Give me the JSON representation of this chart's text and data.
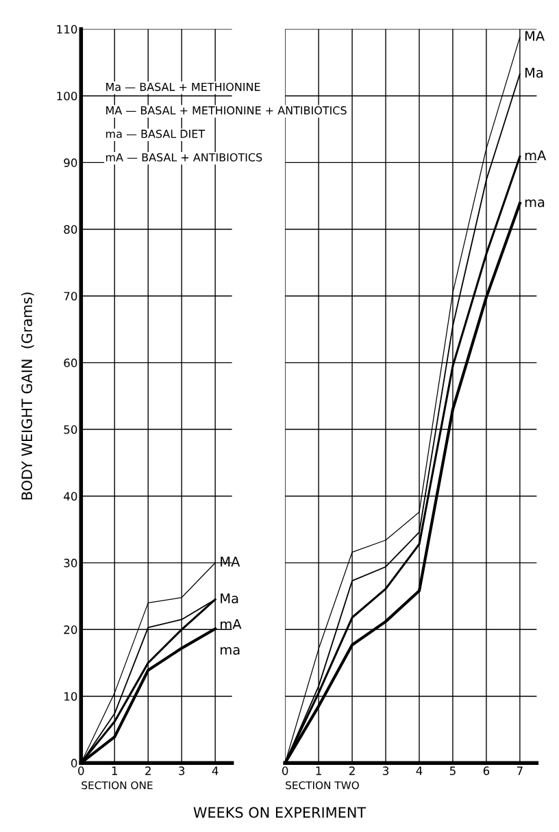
{
  "chart_data": [
    {
      "type": "line",
      "xlabel": "SECTION ONE",
      "ylabel": "BODY WEIGHT GAIN  (Grams)",
      "x": [
        0,
        1,
        2,
        3,
        4
      ],
      "xlim": [
        0,
        4.5
      ],
      "xticks": [
        0,
        1,
        2,
        3,
        4
      ],
      "ylim": [
        0,
        110
      ],
      "yticks": [
        0,
        10,
        20,
        30,
        40,
        50,
        60,
        70,
        80,
        90,
        100,
        110
      ],
      "grid": true,
      "marker": "none",
      "line_style": "solid",
      "annotations": [
        "Ma — BASAL + METHIONINE",
        "MA — BASAL + METHIONINE + ANTIBIOTICS",
        "ma — BASAL DIET",
        "mA — BASAL + ANTIBIOTICS"
      ],
      "series": [
        {
          "name": "MA",
          "color": "#000000",
          "values": [
            0,
            10.5,
            24,
            24.8,
            30
          ]
        },
        {
          "name": "Ma",
          "color": "#000000",
          "values": [
            0,
            7.4,
            20.3,
            21.5,
            24.5
          ]
        },
        {
          "name": "mA",
          "color": "#000000",
          "values": [
            0,
            6.2,
            15,
            20,
            24.5
          ]
        },
        {
          "name": "ma",
          "color": "#000000",
          "values": [
            0,
            3.9,
            13.9,
            17.2,
            20.1
          ]
        }
      ]
    },
    {
      "type": "line",
      "xlabel": "SECTION TWO",
      "x": [
        0,
        1,
        2,
        3,
        4,
        5,
        6,
        7
      ],
      "xlim": [
        0,
        7.5
      ],
      "xticks": [
        0,
        1,
        2,
        3,
        4,
        5,
        6,
        7
      ],
      "ylim": [
        0,
        110
      ],
      "yticks": [
        0,
        10,
        20,
        30,
        40,
        50,
        60,
        70,
        80,
        90,
        100,
        110
      ],
      "tick_labels": "x",
      "grid": true,
      "marker": "none",
      "line_style": "solid",
      "annotations": [
        "WEEKS ON EXPERIMENT"
      ],
      "series": [
        {
          "name": "MA",
          "color": "#000000",
          "values": [
            0,
            17.1,
            31.6,
            33.4,
            37.6,
            70.5,
            92.1,
            108.8
          ]
        },
        {
          "name": "Ma",
          "color": "#000000",
          "values": [
            0,
            11.5,
            27.3,
            29.4,
            34.6,
            65.5,
            87.4,
            103.3
          ]
        },
        {
          "name": "mA",
          "color": "#000000",
          "values": [
            0,
            10.5,
            21.8,
            26.1,
            32.8,
            59.5,
            76.3,
            90.9
          ]
        },
        {
          "name": "ma",
          "color": "#000000",
          "values": [
            0,
            8.5,
            17.7,
            21.2,
            25.8,
            53,
            69.8,
            83.9
          ]
        }
      ]
    }
  ]
}
